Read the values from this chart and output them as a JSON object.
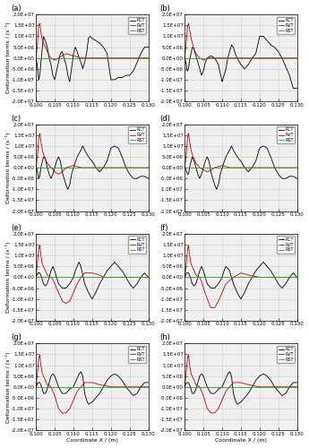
{
  "subplot_labels": [
    "(a)",
    "(b)",
    "(c)",
    "(d)",
    "(e)",
    "(f)",
    "(g)",
    "(h)"
  ],
  "xlabel": "Coordinate X / (m)",
  "ylabel": "Deformation terms / (s⁻¹)",
  "legend_labels": [
    "RCT",
    "RVT",
    "RST"
  ],
  "line_colors": [
    "#000000",
    "#cc0000",
    "#22aa22"
  ],
  "xlim": [
    0.1,
    0.13
  ],
  "xticks": [
    0.1,
    0.105,
    0.11,
    0.115,
    0.12,
    0.125,
    0.13
  ],
  "ylim": [
    -20000000.0,
    20000000.0
  ],
  "yticks": [
    -20000000.0,
    -15000000.0,
    -10000000.0,
    -5000000.0,
    0.0,
    5000000.0,
    10000000.0,
    15000000.0,
    20000000.0
  ],
  "grid_color": "#cccccc",
  "background_color": "#f0f0f0",
  "figsize": [
    3.45,
    5.0
  ],
  "dpi": 100
}
